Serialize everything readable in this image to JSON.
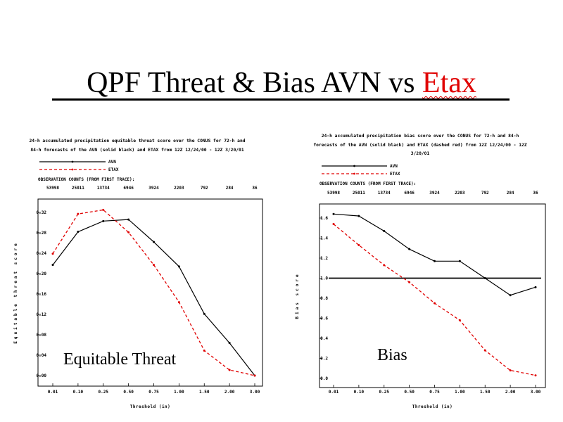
{
  "slide": {
    "title_main": "QPF Threat & Bias AVN vs ",
    "title_emph": "Etax",
    "accent": "#e00000",
    "overlay_left": "Equitable Threat",
    "overlay_right": "Bias"
  },
  "chart_data": [
    {
      "type": "line",
      "title_lines": [
        "24-h accumulated precipitation equitable threat score over the CONUS for 72-h and",
        "84-h forecasts of the AVN (solid black) and ETAX from 12Z 12/24/00 - 12Z 3/20/01"
      ],
      "legend": [
        "AVN",
        "ETAX"
      ],
      "counts_label": "OBSERVATION COUNTS (FROM FIRST TRACE):",
      "counts": [
        "53998",
        "25011",
        "13734",
        "6946",
        "3924",
        "2203",
        "792",
        "284",
        "36"
      ],
      "categories": [
        "0.01",
        "0.10",
        "0.25",
        "0.50",
        "0.75",
        "1.00",
        "1.50",
        "2.00",
        "3.00"
      ],
      "xlabel": "Threshold (in)",
      "ylabel": "Equitable threat score",
      "ylim": [
        0.0,
        0.35
      ],
      "yticks": [
        "0.00",
        "0.04",
        "0.08",
        "0.12",
        "0.16",
        "0.20",
        "0.24",
        "0.28",
        "0.32"
      ],
      "series": [
        {
          "name": "AVN",
          "color": "#000000",
          "dashed": false,
          "values": [
            0.217,
            0.282,
            0.303,
            0.306,
            0.262,
            0.214,
            0.121,
            0.064,
            0.0
          ]
        },
        {
          "name": "ETAX",
          "color": "#e00000",
          "dashed": true,
          "values": [
            0.239,
            0.317,
            0.325,
            0.281,
            0.217,
            0.144,
            0.049,
            0.011,
            0.0
          ]
        }
      ]
    },
    {
      "type": "line",
      "title_lines": [
        "24-h accumulated precipitation bias score over the CONUS for 72-h and 84-h",
        "forecasts of the AVN (solid black) and ETAX (dashed red) from 12Z 12/24/00 - 12Z",
        "3/20/01"
      ],
      "legend": [
        "AVN",
        "ETAX"
      ],
      "counts_label": "OBSERVATION COUNTS (FROM FIRST TRACE):",
      "counts": [
        "53998",
        "25011",
        "13734",
        "6946",
        "3924",
        "2203",
        "792",
        "284",
        "36"
      ],
      "categories": [
        "0.01",
        "0.10",
        "0.25",
        "0.50",
        "0.75",
        "1.00",
        "1.50",
        "2.00",
        "3.00"
      ],
      "xlabel": "Threshold (in)",
      "ylabel": "Bias score",
      "ylim": [
        0.0,
        1.75
      ],
      "yticks": [
        "0.0",
        "0.2",
        "0.4",
        "0.6",
        "0.8",
        "1.0",
        "1.2",
        "1.4",
        "1.6"
      ],
      "reference_line": 1.0,
      "series": [
        {
          "name": "AVN",
          "color": "#000000",
          "dashed": false,
          "values": [
            1.64,
            1.62,
            1.47,
            1.29,
            1.17,
            1.17,
            1.0,
            0.83,
            0.91
          ]
        },
        {
          "name": "ETAX",
          "color": "#e00000",
          "dashed": true,
          "values": [
            1.54,
            1.33,
            1.13,
            0.96,
            0.75,
            0.58,
            0.28,
            0.08,
            0.03
          ]
        }
      ]
    }
  ]
}
